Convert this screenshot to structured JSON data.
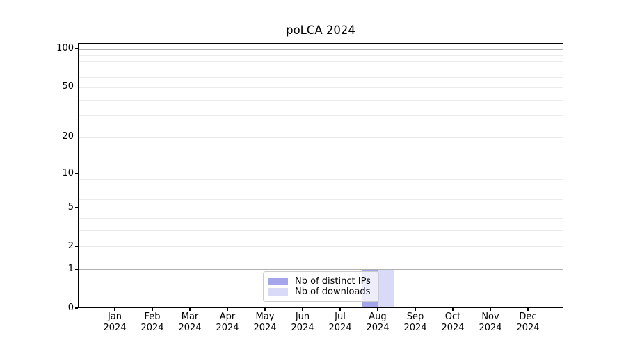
{
  "title": "poLCA 2024",
  "chart_data": {
    "type": "bar",
    "title": "poLCA 2024",
    "categories": [
      {
        "month": "Jan",
        "year": "2024"
      },
      {
        "month": "Feb",
        "year": "2024"
      },
      {
        "month": "Mar",
        "year": "2024"
      },
      {
        "month": "Apr",
        "year": "2024"
      },
      {
        "month": "May",
        "year": "2024"
      },
      {
        "month": "Jun",
        "year": "2024"
      },
      {
        "month": "Jul",
        "year": "2024"
      },
      {
        "month": "Aug",
        "year": "2024"
      },
      {
        "month": "Sep",
        "year": "2024"
      },
      {
        "month": "Oct",
        "year": "2024"
      },
      {
        "month": "Nov",
        "year": "2024"
      },
      {
        "month": "Dec",
        "year": "2024"
      }
    ],
    "series": [
      {
        "name": "Nb of distinct IPs",
        "color": "#a5a5ec",
        "values": [
          0,
          0,
          0,
          0,
          0,
          0,
          0,
          1,
          0,
          0,
          0,
          0
        ]
      },
      {
        "name": "Nb of downloads",
        "color": "#d9d9f8",
        "values": [
          0,
          0,
          0,
          0,
          0,
          0,
          0,
          1,
          0,
          0,
          0,
          0
        ]
      }
    ],
    "xlabel": "",
    "ylabel": "",
    "yscale": "log1p",
    "ylim": [
      0,
      100
    ],
    "yticks": [
      0,
      1,
      2,
      5,
      10,
      20,
      50,
      100
    ],
    "grid_major": [
      1,
      10,
      100
    ],
    "grid_minor": [
      2,
      3,
      4,
      5,
      6,
      7,
      8,
      9,
      20,
      30,
      40,
      50,
      60,
      70,
      80,
      90
    ],
    "grid_major_color": "#b1b1b1",
    "grid_minor_color": "#ebebeb",
    "legend_position": "bottom-center"
  },
  "legend": {
    "items": [
      {
        "label": "Nb of distinct IPs",
        "color": "#a5a5ec"
      },
      {
        "label": "Nb of downloads",
        "color": "#d9d9f8"
      }
    ]
  }
}
